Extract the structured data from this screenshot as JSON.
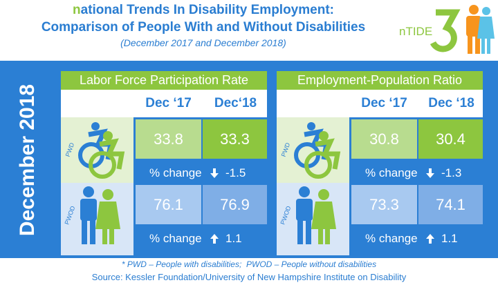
{
  "header": {
    "title": "national Trends In Disability Employment:",
    "subtitle": "Comparison of People With and Without Disabilities",
    "period": "(December 2017 and December 2018)",
    "logo": "nTIDE"
  },
  "side_label": "December 2018",
  "panels": [
    {
      "title": "Labor Force Participation Rate",
      "columns": [
        "Dec ‘17",
        "Dec‘18"
      ],
      "rows": [
        {
          "group": "PWD",
          "values": [
            33.8,
            33.3
          ],
          "change_label": "% change",
          "change": -1.5
        },
        {
          "group": "PWOD",
          "values": [
            76.1,
            76.9
          ],
          "change_label": "% change",
          "change": 1.1
        }
      ]
    },
    {
      "title": "Employment-Population Ratio",
      "columns": [
        "Dec ‘17",
        "Dec ‘18"
      ],
      "rows": [
        {
          "group": "PWD",
          "values": [
            30.8,
            30.4
          ],
          "change_label": "% change",
          "change": -1.3
        },
        {
          "group": "PWOD",
          "values": [
            73.3,
            74.1
          ],
          "change_label": "% change",
          "change": 1.1
        }
      ]
    }
  ],
  "footnote": "* PWD – People with disabilities;  PWOD – People without disabilities",
  "source": "Source: Kessler Foundation/University of New Hampshire Institute on Disability"
}
